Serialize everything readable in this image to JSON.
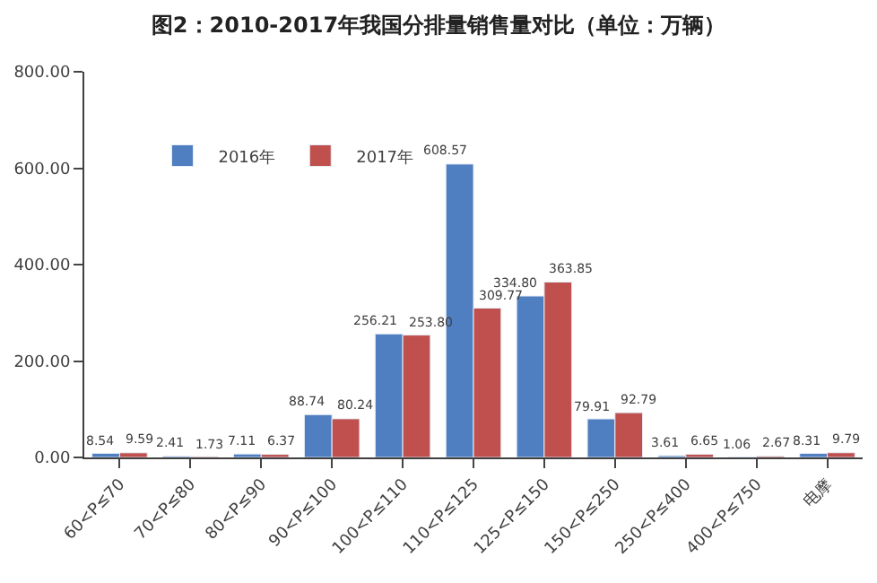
{
  "chart_data": {
    "type": "bar",
    "title": "图2：2010-2017年我国分排量销售量对比（单位：万辆）",
    "categories": [
      "60<P≤70",
      "70<P≤80",
      "80<P≤90",
      "90<P≤100",
      "100<P≤110",
      "110<P≤125",
      "125<P≤150",
      "150<P≤250",
      "250<P≤400",
      "400<P≤750",
      "电摩"
    ],
    "series": [
      {
        "name": "2016年",
        "color": "#4f7fc0",
        "values": [
          8.54,
          2.41,
          7.11,
          88.74,
          256.21,
          608.57,
          334.8,
          79.91,
          3.61,
          1.06,
          8.31
        ],
        "value_labels": [
          "8.54",
          "2.41",
          "7.11",
          "88.74",
          "256.21",
          "608.57",
          "334.80",
          "79.91",
          "3.61",
          "1.06",
          "8.31"
        ]
      },
      {
        "name": "2017年",
        "color": "#c0504d",
        "values": [
          9.59,
          1.73,
          6.37,
          80.24,
          253.8,
          309.77,
          363.85,
          92.79,
          6.65,
          2.67,
          9.79
        ],
        "value_labels": [
          "9.59",
          "1.73",
          "6.37",
          "80.24",
          "253.80",
          "309.77",
          "363.85",
          "92.79",
          "6.65",
          "2.67",
          "9.79"
        ]
      }
    ],
    "ylim": [
      0,
      800
    ],
    "yticks": [
      {
        "value": 0,
        "label": "0.00"
      },
      {
        "value": 200,
        "label": "200.00"
      },
      {
        "value": 400,
        "label": "400.00"
      },
      {
        "value": 600,
        "label": "600.00"
      },
      {
        "value": 800,
        "label": "800.00"
      }
    ],
    "legend": "top left"
  }
}
